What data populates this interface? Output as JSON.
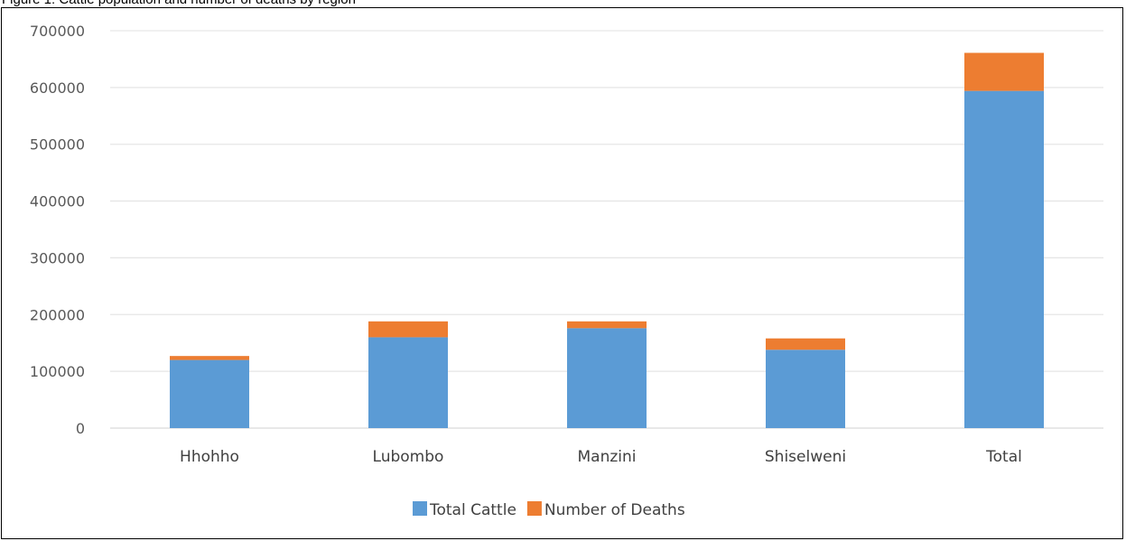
{
  "caption": "Figure 1: Cattle population and number of deaths by region",
  "chart_data": {
    "type": "bar",
    "stacked": true,
    "categories": [
      "Hhohho",
      "Lubombo",
      "Manzini",
      "Shiselweni",
      "Total"
    ],
    "series": [
      {
        "name": "Total Cattle",
        "color": "#5b9bd5",
        "values": [
          120000,
          160000,
          176000,
          138000,
          594000
        ]
      },
      {
        "name": "Number of  Deaths",
        "color": "#ed7d31",
        "values": [
          7000,
          28000,
          12000,
          20000,
          67000
        ]
      }
    ],
    "ylim": [
      0,
      700000
    ],
    "yticks": [
      "0",
      "100000",
      "200000",
      "300000",
      "400000",
      "500000",
      "600000",
      "700000"
    ],
    "grid": true,
    "legend": "bottom",
    "title": "",
    "xlabel": "",
    "ylabel": ""
  }
}
